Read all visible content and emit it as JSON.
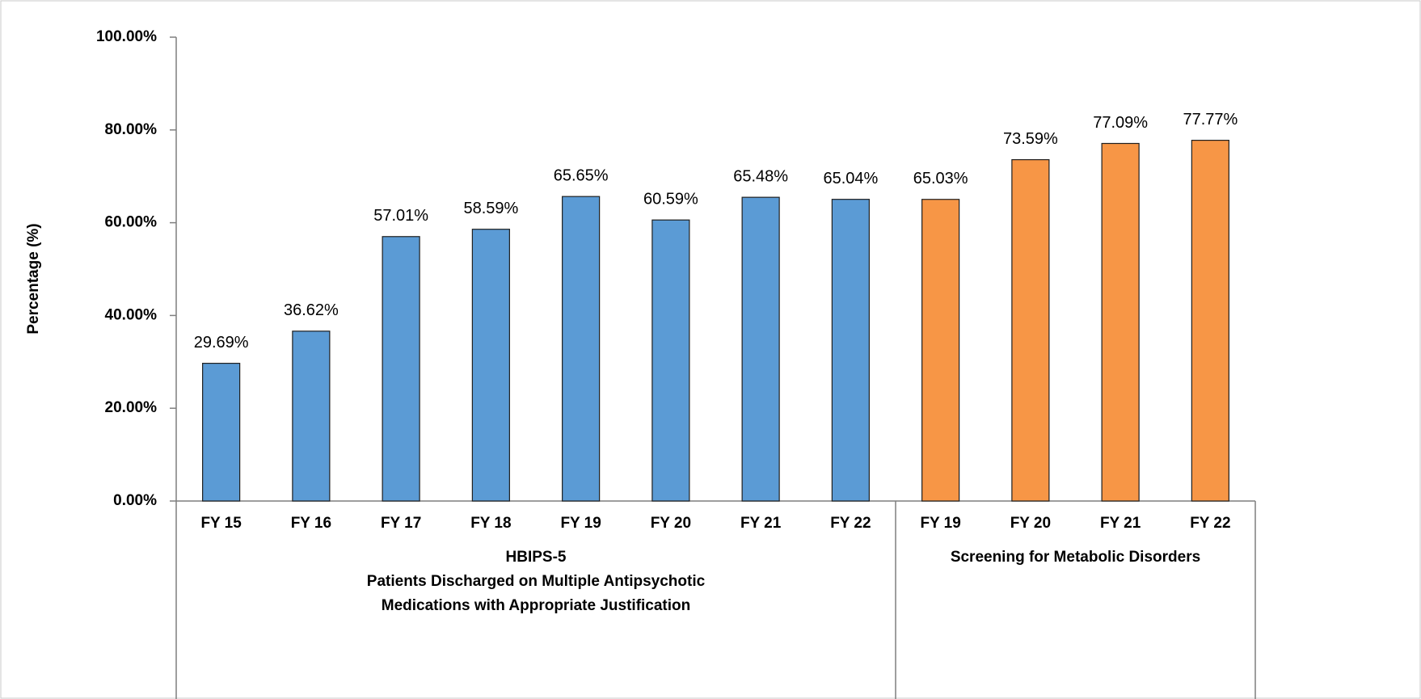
{
  "chart_data": {
    "type": "bar",
    "y_label": "Percentage (%)",
    "ylim": [
      0,
      100
    ],
    "yticks": [
      {
        "value": 0,
        "label": "0.00%"
      },
      {
        "value": 20,
        "label": "20.00%"
      },
      {
        "value": 40,
        "label": "40.00%"
      },
      {
        "value": 60,
        "label": "60.00%"
      },
      {
        "value": 80,
        "label": "80.00%"
      },
      {
        "value": 100,
        "label": "100.00%"
      }
    ],
    "groups": [
      {
        "label": [
          "HBIPS-5",
          "Patients Discharged on Multiple Antipsychotic",
          "Medications with Appropriate Justification"
        ],
        "color": "#5b9bd5",
        "categories": [
          "FY 15",
          "FY 16",
          "FY 17",
          "FY 18",
          "FY 19",
          "FY 20",
          "FY 21",
          "FY 22"
        ],
        "values": [
          29.69,
          36.62,
          57.01,
          58.59,
          65.65,
          60.59,
          65.48,
          65.04
        ],
        "value_labels": [
          "29.69%",
          "36.62%",
          "57.01%",
          "58.59%",
          "65.65%",
          "60.59%",
          "65.48%",
          "65.04%"
        ]
      },
      {
        "label": [
          "Screening for Metabolic Disorders"
        ],
        "color": "#f79646",
        "categories": [
          "FY 19",
          "FY 20",
          "FY 21",
          "FY 22"
        ],
        "values": [
          65.03,
          73.59,
          77.09,
          77.77
        ],
        "value_labels": [
          "65.03%",
          "73.59%",
          "77.09%",
          "77.77%"
        ]
      }
    ]
  }
}
